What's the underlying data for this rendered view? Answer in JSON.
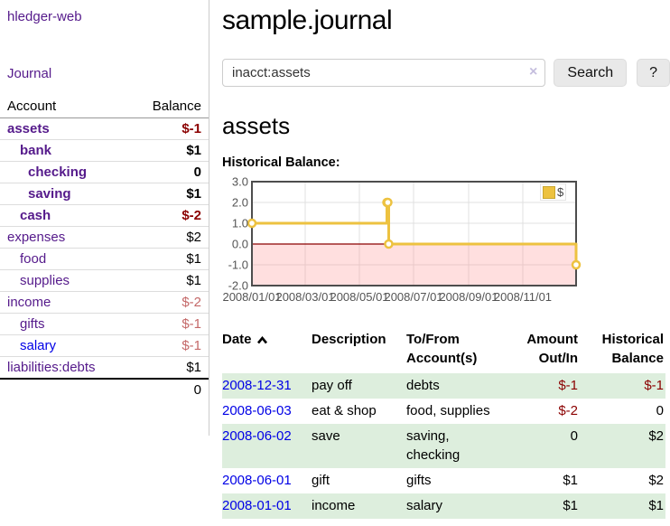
{
  "app": {
    "brand": "hledger-web",
    "nav_journal": "Journal"
  },
  "sidebar": {
    "accounts_header": {
      "account": "Account",
      "balance": "Balance"
    },
    "accounts": [
      {
        "name": "assets",
        "depth": 1,
        "balance": "$-1",
        "in_selected": true,
        "balance_style": "neg-strong",
        "link_style": "purple"
      },
      {
        "name": "bank",
        "depth": 2,
        "balance": "$1",
        "in_selected": true,
        "balance_style": "normal",
        "link_style": "purple"
      },
      {
        "name": "checking",
        "depth": 3,
        "balance": "0",
        "in_selected": true,
        "balance_style": "normal",
        "link_style": "purple"
      },
      {
        "name": "saving",
        "depth": 3,
        "balance": "$1",
        "in_selected": true,
        "balance_style": "normal",
        "link_style": "purple"
      },
      {
        "name": "cash",
        "depth": 2,
        "balance": "$-2",
        "in_selected": true,
        "balance_style": "neg-strong",
        "link_style": "purple"
      },
      {
        "name": "expenses",
        "depth": 1,
        "balance": "$2",
        "in_selected": false,
        "balance_style": "normal",
        "link_style": "purple"
      },
      {
        "name": "food",
        "depth": 2,
        "balance": "$1",
        "in_selected": false,
        "balance_style": "normal",
        "link_style": "purple"
      },
      {
        "name": "supplies",
        "depth": 2,
        "balance": "$1",
        "in_selected": false,
        "balance_style": "normal",
        "link_style": "purple"
      },
      {
        "name": "income",
        "depth": 1,
        "balance": "$-2",
        "in_selected": false,
        "balance_style": "neg-soft",
        "link_style": "purple"
      },
      {
        "name": "gifts",
        "depth": 2,
        "balance": "$-1",
        "in_selected": false,
        "balance_style": "neg-soft",
        "link_style": "purple"
      },
      {
        "name": "salary",
        "depth": 2,
        "balance": "$-1",
        "in_selected": false,
        "balance_style": "neg-soft",
        "link_style": "blue"
      },
      {
        "name": "liabilities:debts",
        "depth": 1,
        "balance": "$1",
        "in_selected": false,
        "balance_style": "normal",
        "link_style": "purple"
      }
    ],
    "total": "0"
  },
  "header": {
    "title": "sample.journal"
  },
  "search": {
    "value": "inacct:assets",
    "clear_icon": "×",
    "button_label": "Search",
    "help_label": "?"
  },
  "account_page": {
    "title": "assets",
    "chart_label": "Historical Balance:"
  },
  "chart_data": {
    "type": "line",
    "title": "Historical Balance",
    "step": true,
    "series": [
      {
        "name": "$",
        "color": "#edc240",
        "points": [
          [
            "2008-01-01",
            1
          ],
          [
            "2008-06-01",
            2
          ],
          [
            "2008-06-02",
            2
          ],
          [
            "2008-06-03",
            0
          ],
          [
            "2008-12-31",
            -1
          ]
        ]
      }
    ],
    "xlim": [
      "2008-01-01",
      "2008-12-31"
    ],
    "ylim": [
      -2.0,
      3.0
    ],
    "y_ticks": [
      3.0,
      2.0,
      1.0,
      0.0,
      -1.0,
      -2.0
    ],
    "x_ticks": [
      "2008/01/01",
      "2008/03/01",
      "2008/05/01",
      "2008/07/01",
      "2008/09/01",
      "2008/11/01"
    ],
    "grid": true,
    "legend": {
      "label": "$",
      "position": "top-right"
    },
    "colors": {
      "line": "#edc240",
      "marker_fill": "#ffffff",
      "negative_region": "rgba(255,150,150,0.30)",
      "zero_line": "#8b0000",
      "gridline": "#e0e0e0",
      "plot_border": "#4d4d4d",
      "tick_text": "#545454"
    }
  },
  "register": {
    "headers": [
      {
        "label": "Date",
        "sorted": "asc"
      },
      {
        "label": "Description"
      },
      {
        "label": "To/From Account(s)"
      },
      {
        "label": "Amount Out/In"
      },
      {
        "label": "Historical Balance"
      }
    ],
    "rows": [
      {
        "date": "2008-12-31",
        "description": "pay off",
        "accounts": "debts",
        "amount": "$-1",
        "balance": "$-1"
      },
      {
        "date": "2008-06-03",
        "description": "eat & shop",
        "accounts": "food, supplies",
        "amount": "$-2",
        "balance": "0"
      },
      {
        "date": "2008-06-02",
        "description": "save",
        "accounts": "saving, checking",
        "amount": "0",
        "balance": "$2"
      },
      {
        "date": "2008-06-01",
        "description": "gift",
        "accounts": "gifts",
        "amount": "$1",
        "balance": "$2"
      },
      {
        "date": "2008-01-01",
        "description": "income",
        "accounts": "salary",
        "amount": "$1",
        "balance": "$1"
      }
    ]
  }
}
